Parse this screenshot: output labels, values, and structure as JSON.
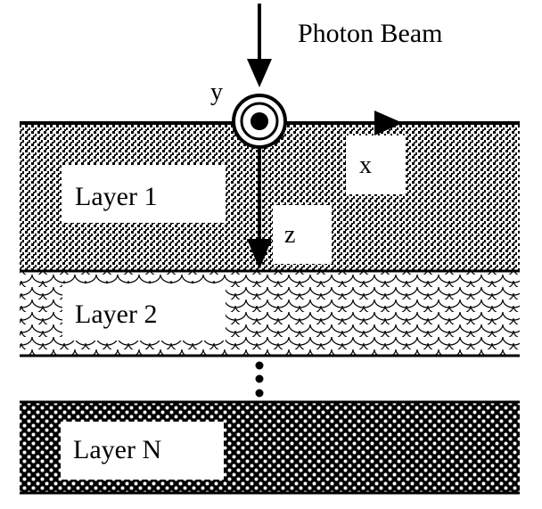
{
  "beam_label": "Photon Beam",
  "axes": {
    "x_label": "x",
    "y_label": "y",
    "z_label": "z"
  },
  "layers": [
    {
      "label": "Layer 1",
      "pattern": "fine-dots"
    },
    {
      "label": "Layer 2",
      "pattern": "scales"
    },
    {
      "label": "Layer N",
      "pattern": "coarse-checker"
    }
  ],
  "ellipsis": "vertical-dots",
  "colors": {
    "ink": "#000000",
    "background": "#ffffff"
  }
}
